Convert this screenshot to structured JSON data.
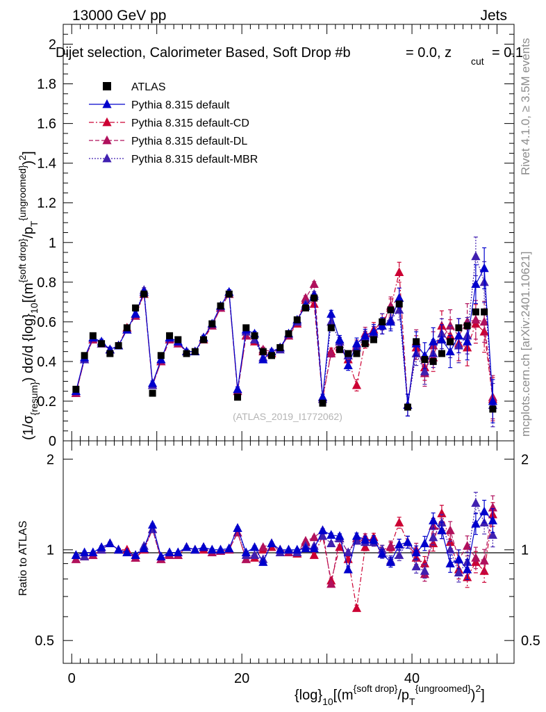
{
  "header": {
    "energy": "13000 GeV pp",
    "category": "Jets"
  },
  "side_text": {
    "rivet": "Rivet 4.1.0, ≥ 3.5M events",
    "mcplots": "mcplots.cern.ch [arXiv:2401.10621]"
  },
  "chart_data": {
    "type": "scatter",
    "title": "Dijet selection, Calorimeter Based, Soft Drop #b = 0.0, z_cut = 0.1",
    "title_parts": {
      "main": "Dijet selection, Calorimeter Based, Soft Drop #b",
      "eq": "= 0.0, z",
      "sub": "cut",
      "tail": "= 0.1"
    },
    "analysis": "(ATLAS_2019_I1772062)",
    "xlabel": "{log}_10[(m^{soft drop}/p_T^{ungroomed})^2]",
    "xlabel_parts": {
      "a": "{log}",
      "b": "10",
      "c": "[(m",
      "d": "{soft drop}",
      "e": "/p",
      "f": "T",
      "g": "{ungroomed}",
      "h": ")",
      "i": "2",
      "j": "]"
    },
    "ylabel": "(1/σ_{resum}) dσ/d {log}_10[(m^{soft drop}/p_T^{ungroomed})^2]",
    "ylabel_parts": {
      "a": "(1/σ",
      "b": "{resum}",
      "c": ") dσ/d {log}",
      "d": "10",
      "e": "[(m",
      "f": "{soft drop}",
      "g": "/p",
      "h": "T",
      "i": "{ungroomed}",
      "j": ")",
      "k": "2",
      "l": "]"
    },
    "ratio_ylabel": "Ratio to ATLAS",
    "xlim": [
      -1,
      52
    ],
    "ylim": [
      0,
      2.1
    ],
    "ratio_ylim": [
      0.42,
      2.3
    ],
    "x_ticks": [
      "0",
      "20",
      "40"
    ],
    "y_ticks": [
      "0",
      "0.2",
      "0.4",
      "0.6",
      "0.8",
      "1",
      "1.2",
      "1.4",
      "1.6",
      "1.8",
      "2"
    ],
    "ratio_ticks": [
      "0.5",
      "1",
      "2"
    ],
    "legend": [
      "ATLAS",
      "Pythia 8.315 default",
      "Pythia 8.315 default-CD",
      "Pythia 8.315 default-DL",
      "Pythia 8.315 default-MBR"
    ],
    "x": [
      0.5,
      1.5,
      2.5,
      3.5,
      4.5,
      5.5,
      6.5,
      7.5,
      8.5,
      9.5,
      10.5,
      11.5,
      12.5,
      13.5,
      14.5,
      15.5,
      16.5,
      17.5,
      18.5,
      19.5,
      20.5,
      21.5,
      22.5,
      23.5,
      24.5,
      25.5,
      26.5,
      27.5,
      28.5,
      29.5,
      30.5,
      31.5,
      32.5,
      33.5,
      34.5,
      35.5,
      36.5,
      37.5,
      38.5,
      39.5,
      40.5,
      41.5,
      42.5,
      43.5,
      44.5,
      45.5,
      46.5,
      47.5,
      48.5,
      49.5
    ],
    "data": {
      "name": "ATLAS",
      "values": [
        0.26,
        0.43,
        0.53,
        0.49,
        0.44,
        0.48,
        0.57,
        0.67,
        0.74,
        0.24,
        0.43,
        0.53,
        0.51,
        0.44,
        0.45,
        0.51,
        0.59,
        0.68,
        0.74,
        0.22,
        0.57,
        0.53,
        0.45,
        0.43,
        0.47,
        0.54,
        0.61,
        0.67,
        0.72,
        0.19,
        0.57,
        0.46,
        0.44,
        0.44,
        0.49,
        0.51,
        0.6,
        0.66,
        0.69,
        0.17,
        0.5,
        0.41,
        0.4,
        0.44,
        0.5,
        0.57,
        0.58,
        0.65,
        0.65,
        0.16
      ]
    },
    "series": [
      {
        "name": "Pythia 8.315 default",
        "color": "#0000cc",
        "line": "solid",
        "values": [
          0.25,
          0.42,
          0.52,
          0.5,
          0.46,
          0.48,
          0.56,
          0.64,
          0.75,
          0.29,
          0.41,
          0.52,
          0.5,
          0.45,
          0.45,
          0.52,
          0.59,
          0.68,
          0.75,
          0.26,
          0.56,
          0.54,
          0.41,
          0.45,
          0.47,
          0.54,
          0.61,
          0.68,
          0.73,
          0.22,
          0.64,
          0.51,
          0.38,
          0.49,
          0.53,
          0.55,
          0.58,
          0.6,
          0.72,
          0.18,
          0.49,
          0.43,
          0.5,
          0.51,
          0.45,
          0.53,
          0.5,
          0.79,
          0.87,
          0.2
        ],
        "ratio": [
          0.96,
          0.98,
          0.98,
          1.02,
          1.05,
          1.0,
          0.98,
          0.96,
          1.01,
          1.21,
          0.95,
          0.98,
          0.98,
          1.02,
          1.0,
          1.02,
          1.0,
          1.0,
          1.01,
          1.18,
          0.98,
          1.02,
          0.91,
          1.05,
          1.0,
          1.0,
          1.0,
          1.01,
          1.01,
          1.16,
          1.12,
          1.11,
          0.86,
          1.11,
          1.08,
          1.08,
          0.97,
          0.91,
          1.04,
          1.06,
          0.98,
          1.05,
          1.25,
          1.16,
          0.9,
          0.93,
          0.86,
          1.22,
          1.34,
          1.25
        ]
      },
      {
        "name": "Pythia 8.315 default-CD",
        "color": "#cc0033",
        "line": "dashdot",
        "values": [
          0.24,
          0.41,
          0.51,
          0.49,
          0.46,
          0.48,
          0.57,
          0.63,
          0.74,
          0.28,
          0.4,
          0.51,
          0.49,
          0.45,
          0.45,
          0.51,
          0.58,
          0.67,
          0.74,
          0.25,
          0.53,
          0.5,
          0.45,
          0.44,
          0.47,
          0.53,
          0.59,
          0.71,
          0.69,
          0.21,
          0.45,
          0.47,
          0.41,
          0.28,
          0.5,
          0.56,
          0.6,
          0.67,
          0.85,
          0.18,
          0.47,
          0.37,
          0.42,
          0.58,
          0.53,
          0.49,
          0.47,
          0.59,
          0.55,
          0.21
        ],
        "ratio": [
          0.93,
          0.95,
          0.96,
          1.0,
          1.05,
          1.0,
          1.0,
          0.94,
          1.0,
          1.17,
          0.93,
          0.96,
          0.96,
          1.02,
          1.0,
          1.0,
          0.98,
          0.99,
          1.0,
          1.14,
          0.93,
          0.94,
          1.0,
          1.02,
          1.0,
          0.98,
          0.97,
          1.06,
          0.96,
          1.11,
          0.79,
          1.02,
          0.93,
          0.64,
          1.02,
          1.1,
          1.0,
          1.02,
          1.23,
          1.06,
          0.94,
          0.9,
          1.05,
          1.32,
          1.06,
          0.86,
          0.81,
          0.91,
          0.85,
          1.31
        ]
      },
      {
        "name": "Pythia 8.315 default-DL",
        "color": "#b0105c",
        "line": "dashed",
        "values": [
          0.24,
          0.41,
          0.51,
          0.49,
          0.46,
          0.48,
          0.56,
          0.63,
          0.75,
          0.28,
          0.4,
          0.51,
          0.49,
          0.45,
          0.45,
          0.52,
          0.58,
          0.67,
          0.74,
          0.25,
          0.53,
          0.51,
          0.46,
          0.45,
          0.47,
          0.53,
          0.6,
          0.72,
          0.79,
          0.22,
          0.44,
          0.5,
          0.43,
          0.48,
          0.54,
          0.54,
          0.58,
          0.68,
          0.72,
          0.18,
          0.5,
          0.34,
          0.48,
          0.51,
          0.58,
          0.53,
          0.6,
          0.61,
          0.6,
          0.22
        ],
        "ratio": [
          0.93,
          0.95,
          0.96,
          1.0,
          1.05,
          1.0,
          0.98,
          0.94,
          1.01,
          1.17,
          0.93,
          0.96,
          0.96,
          1.02,
          1.0,
          1.02,
          0.98,
          0.99,
          1.0,
          1.14,
          0.93,
          0.96,
          1.02,
          1.05,
          1.0,
          0.98,
          0.98,
          1.07,
          1.1,
          1.16,
          0.77,
          1.09,
          0.98,
          1.09,
          1.1,
          1.06,
          0.97,
          1.03,
          1.04,
          1.06,
          1.0,
          0.83,
          1.2,
          1.16,
          1.16,
          0.93,
          1.03,
          0.94,
          0.92,
          1.38
        ]
      },
      {
        "name": "Pythia 8.315 default-MBR",
        "color": "#4020b0",
        "line": "dotted",
        "values": [
          0.25,
          0.41,
          0.52,
          0.49,
          0.46,
          0.48,
          0.56,
          0.64,
          0.76,
          0.28,
          0.41,
          0.52,
          0.5,
          0.45,
          0.45,
          0.52,
          0.59,
          0.68,
          0.75,
          0.26,
          0.55,
          0.51,
          0.42,
          0.45,
          0.46,
          0.54,
          0.6,
          0.69,
          0.74,
          0.21,
          0.6,
          0.5,
          0.43,
          0.47,
          0.52,
          0.54,
          0.6,
          0.61,
          0.66,
          0.18,
          0.44,
          0.35,
          0.44,
          0.54,
          0.5,
          0.48,
          0.53,
          0.93,
          0.8,
          0.18
        ],
        "ratio": [
          0.96,
          0.95,
          0.98,
          1.0,
          1.05,
          1.0,
          0.98,
          0.96,
          1.03,
          1.17,
          0.95,
          0.98,
          0.98,
          1.02,
          1.0,
          1.02,
          1.0,
          1.0,
          1.01,
          1.18,
          0.96,
          0.96,
          0.93,
          1.05,
          0.98,
          1.0,
          0.98,
          1.03,
          1.03,
          1.11,
          1.05,
          1.09,
          0.98,
          1.07,
          1.06,
          1.06,
          1.0,
          0.92,
          0.96,
          1.06,
          0.88,
          0.85,
          1.1,
          1.23,
          1.0,
          0.84,
          0.91,
          1.43,
          1.23,
          1.12
        ]
      }
    ]
  }
}
